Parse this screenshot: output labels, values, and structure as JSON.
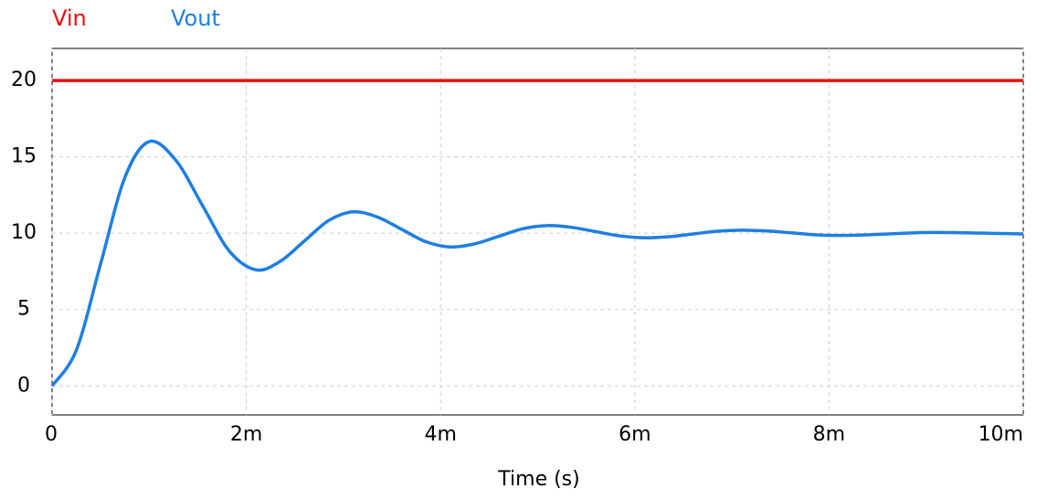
{
  "chart_data": {
    "type": "line",
    "x_label": "Time (s)",
    "x": [
      0,
      0.00025,
      0.0005,
      0.00075,
      0.001,
      0.001275,
      0.00155,
      0.001825,
      0.0021,
      0.00235,
      0.0026,
      0.00285,
      0.0031,
      0.00335,
      0.0036,
      0.00385,
      0.0041,
      0.00435,
      0.0046,
      0.00485,
      0.0051,
      0.00535,
      0.0056,
      0.00585,
      0.0061,
      0.00635,
      0.0066,
      0.00685,
      0.0071,
      0.00735,
      0.0076,
      0.00785,
      0.0081,
      0.00835,
      0.0086,
      0.00885,
      0.0091,
      0.00935,
      0.0096,
      0.00985,
      0.01
    ],
    "series": [
      {
        "name": "Vin",
        "color": "#e8120c",
        "values": [
          20,
          20,
          20,
          20,
          20,
          20,
          20,
          20,
          20,
          20,
          20,
          20,
          20,
          20,
          20,
          20,
          20,
          20,
          20,
          20,
          20,
          20,
          20,
          20,
          20,
          20,
          20,
          20,
          20,
          20,
          20,
          20,
          20,
          20,
          20,
          20,
          20,
          20,
          20,
          20,
          20
        ]
      },
      {
        "name": "Vout",
        "color": "#1e7fe0",
        "values": [
          0,
          2.34,
          8.0,
          13.66,
          16.0,
          14.77,
          11.8,
          8.83,
          7.6,
          8.16,
          9.5,
          10.84,
          11.4,
          11.06,
          10.25,
          9.44,
          9.1,
          9.3,
          9.8,
          10.3,
          10.5,
          10.38,
          10.1,
          9.82,
          9.7,
          9.77,
          9.95,
          10.13,
          10.2,
          10.15,
          10.03,
          9.9,
          9.85,
          9.88,
          9.95,
          10.02,
          10.05,
          10.03,
          10.0,
          9.97,
          9.95
        ]
      }
    ],
    "xlim": [
      0,
      0.01
    ],
    "xticks": [
      0,
      {
        "value": 0.002,
        "label": "2m"
      },
      {
        "value": 0.004,
        "label": "4m"
      },
      {
        "value": 0.006,
        "label": "6m"
      },
      {
        "value": 0.008,
        "label": "8m"
      },
      {
        "value": 0.01,
        "label": "10m"
      }
    ],
    "ylim": [
      -1.9,
      22.1
    ],
    "yticks": [
      0,
      5,
      10,
      15,
      20
    ],
    "grid": true
  }
}
